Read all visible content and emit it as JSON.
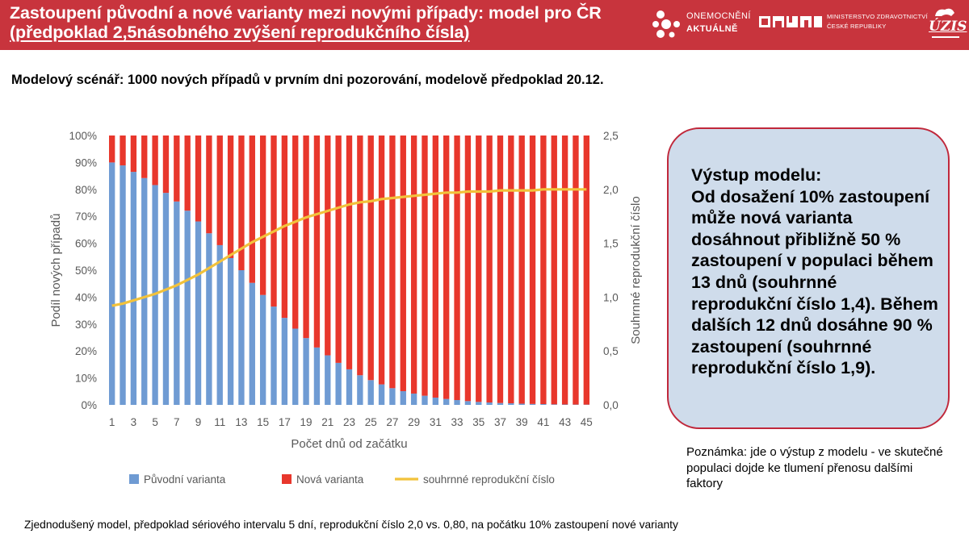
{
  "header": {
    "title_line1": "Zastoupení původní a nové varianty mezi novými případy: model pro ČR",
    "title_line2": "(předpoklad 2,5násobného zvýšení reprodukčního čísla)",
    "logo_oa_line1": "ONEMOCNĚNÍ",
    "logo_oa_line2": "AKTUÁLNĚ",
    "logo_mz_line1": "MINISTERSTVO ZDRAVOTNICTVÍ",
    "logo_mz_line2": "ČESKÉ REPUBLIKY",
    "logo_uzis": "ÚZIS",
    "colors": {
      "band": "#c8343d",
      "text": "#ffffff"
    }
  },
  "subtitle": "Modelový scénář: 1000 nových případů v prvním dni pozorování, modelově předpoklad 20.12.",
  "chart_data": {
    "type": "bar",
    "stacked": true,
    "percent_stacked": true,
    "xlabel": "Počet dnů od začátku",
    "ylabel": "Podíl nových případů",
    "ylabel_right": "Souhrnné reprodukční číslo",
    "ylim": [
      0,
      100
    ],
    "ylim_right": [
      0,
      2.5
    ],
    "y_ticks": [
      "0%",
      "10%",
      "20%",
      "30%",
      "40%",
      "50%",
      "60%",
      "70%",
      "80%",
      "90%",
      "100%"
    ],
    "y_ticks_right": [
      "0,0",
      "0,5",
      "1,0",
      "1,5",
      "2,0",
      "2,5"
    ],
    "x_tick_labels": [
      "1",
      "3",
      "5",
      "7",
      "9",
      "11",
      "13",
      "15",
      "17",
      "19",
      "21",
      "23",
      "25",
      "27",
      "29",
      "31",
      "33",
      "35",
      "37",
      "39",
      "41",
      "43",
      "45"
    ],
    "categories": [
      1,
      2,
      3,
      4,
      5,
      6,
      7,
      8,
      9,
      10,
      11,
      12,
      13,
      14,
      15,
      16,
      17,
      18,
      19,
      20,
      21,
      22,
      23,
      24,
      25,
      26,
      27,
      28,
      29,
      30,
      31,
      32,
      33,
      34,
      35,
      36,
      37,
      38,
      39,
      40,
      41,
      42,
      43,
      44,
      45
    ],
    "legend_position": "bottom",
    "grid": false,
    "series": [
      {
        "name": "Původní varianta",
        "kind": "bar",
        "axis": "left",
        "color": "#6f9bd3",
        "values": [
          90,
          88.9,
          86.5,
          84.2,
          81.6,
          78.7,
          75.5,
          72.1,
          68.1,
          63.7,
          59.3,
          54.5,
          50.0,
          45.3,
          40.8,
          36.5,
          32.3,
          28.3,
          24.8,
          21.3,
          18.4,
          15.6,
          13.2,
          11.0,
          9.2,
          7.6,
          6.2,
          5.1,
          4.2,
          3.4,
          2.7,
          2.2,
          1.8,
          1.4,
          1.1,
          0.9,
          0.7,
          0.6,
          0.45,
          0.35,
          0.3,
          0.2,
          0.15,
          0.12,
          0.1
        ]
      },
      {
        "name": "Nová varianta",
        "kind": "bar",
        "axis": "left",
        "color": "#e8372c",
        "values": [
          10,
          11.1,
          13.5,
          15.8,
          18.4,
          21.3,
          24.5,
          27.9,
          31.9,
          36.3,
          40.7,
          45.5,
          50.0,
          54.7,
          59.2,
          63.5,
          67.7,
          71.7,
          75.2,
          78.7,
          81.6,
          84.4,
          86.8,
          89.0,
          90.8,
          92.4,
          93.8,
          94.9,
          95.8,
          96.6,
          97.3,
          97.8,
          98.2,
          98.6,
          98.9,
          99.1,
          99.3,
          99.4,
          99.55,
          99.65,
          99.7,
          99.8,
          99.85,
          99.88,
          99.9
        ]
      },
      {
        "name": "souhrnné reprodukční číslo",
        "kind": "line",
        "axis": "right",
        "color": "#f2c23b",
        "values": [
          0.92,
          0.94,
          0.97,
          1.0,
          1.03,
          1.07,
          1.11,
          1.16,
          1.21,
          1.27,
          1.33,
          1.39,
          1.45,
          1.51,
          1.56,
          1.61,
          1.66,
          1.7,
          1.74,
          1.77,
          1.8,
          1.83,
          1.86,
          1.88,
          1.89,
          1.91,
          1.92,
          1.93,
          1.94,
          1.95,
          1.96,
          1.97,
          1.97,
          1.98,
          1.98,
          1.98,
          1.99,
          1.99,
          1.99,
          1.99,
          2.0,
          2.0,
          2.0,
          2.0,
          2.0
        ]
      }
    ]
  },
  "model_box": {
    "text": "Výstup modelu:\nOd dosažení 10% zastoupení může nová varianta dosáhnout přibližně 50 % zastoupení v populaci během 13 dnů (souhrnné reprodukční číslo 1,4). Během dalších 12 dnů dosáhne 90 % zastoupení (souhrnné reprodukční číslo 1,9).",
    "colors": {
      "fill": "#cfdceb",
      "border": "#c0283b"
    }
  },
  "note": "Poznámka: jde o výstup z modelu - ve skutečné populaci dojde ke tlumení přenosu dalšími faktory",
  "footnote": "Zjednodušený model, předpoklad sériového intervalu 5 dní, reprodukční číslo 2,0 vs. 0,80, na počátku 10% zastoupení nové varianty"
}
